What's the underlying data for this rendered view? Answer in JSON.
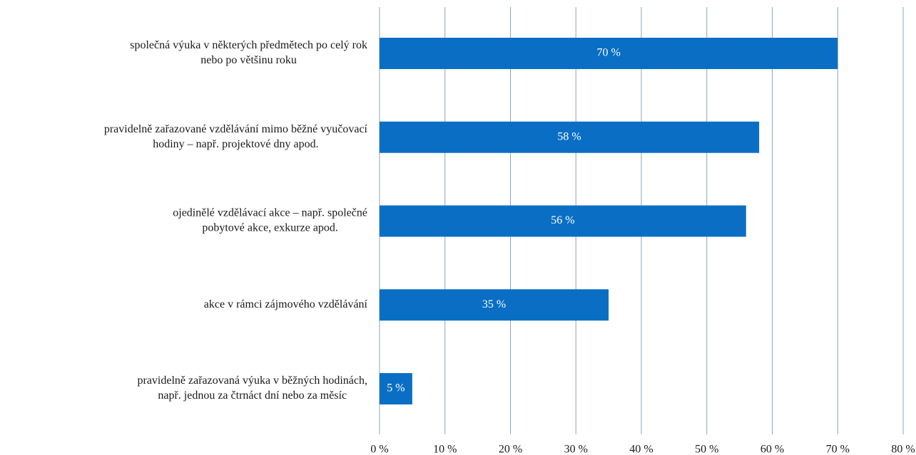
{
  "chart_data": {
    "type": "bar",
    "orientation": "horizontal",
    "categories": [
      [
        "společná výuka v některých předmětech po celý rok",
        "nebo po většinu roku"
      ],
      [
        "pravidelně zařazované vzdělávání mimo běžné vyučovací",
        "hodiny – např. projektové dny apod."
      ],
      [
        "ojedinělé vzdělávací akce – např. společné",
        "pobytové akce, exkurze apod."
      ],
      [
        "akce v rámci zájmového vzdělávání"
      ],
      [
        "pravidelně zařazovaná výuka v běžných hodinách,",
        "např. jednou za čtrnáct dní nebo za měsíc"
      ]
    ],
    "values": [
      70,
      58,
      56,
      35,
      5
    ],
    "value_labels": [
      "70 %",
      "58 %",
      "56 %",
      "35 %",
      "5 %"
    ],
    "color": "#0a6fc4",
    "xlim": [
      0,
      80
    ],
    "xticks": [
      {
        "value": 0,
        "label": "0 %"
      },
      {
        "value": 10,
        "label": "10 %"
      },
      {
        "value": 20,
        "label": "20 %"
      },
      {
        "value": 30,
        "label": "30 %"
      },
      {
        "value": 40,
        "label": "40 %"
      },
      {
        "value": 50,
        "label": "50 %"
      },
      {
        "value": 60,
        "label": "60 %"
      },
      {
        "value": 70,
        "label": "70 %"
      },
      {
        "value": 80,
        "label": "80 %"
      }
    ],
    "grid": true
  }
}
